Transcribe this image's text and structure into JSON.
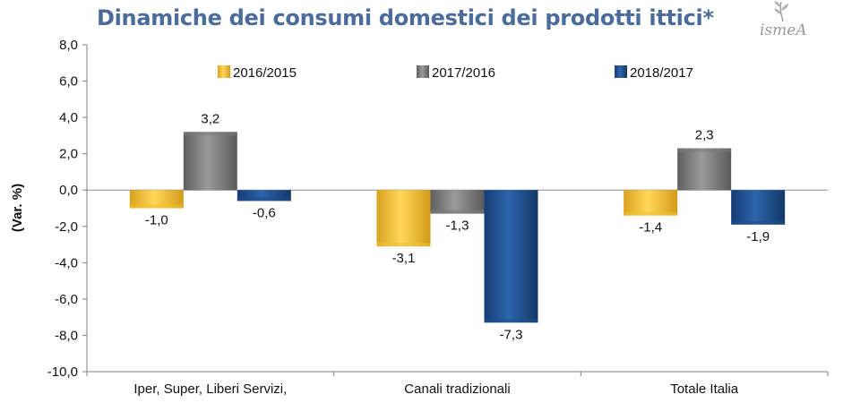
{
  "title": "Dinamiche dei consumi domestici dei prodotti ittici*",
  "logo": {
    "text": "ismeA",
    "icon": "wheat-sprig-icon"
  },
  "chart_data": {
    "type": "bar",
    "title": "Dinamiche dei consumi domestici dei prodotti ittici*",
    "ylabel": "(Var. %)",
    "xlabel": "",
    "ylim": [
      -10,
      8
    ],
    "yticks": [
      8,
      6,
      4,
      2,
      0,
      -2,
      -4,
      -6,
      -8,
      -10
    ],
    "ytick_labels": [
      "8,0",
      "6,0",
      "4,0",
      "2,0",
      "0,0",
      "-2,0",
      "-4,0",
      "-6,0",
      "-8,0",
      "-10,0"
    ],
    "categories": [
      "Iper, Super, Liberi Servizi,",
      "Canali tradizionali",
      "Totale Italia"
    ],
    "series": [
      {
        "name": "2016/2015",
        "color": "#f0c030",
        "values": [
          -1.0,
          -3.1,
          -1.4
        ],
        "labels": [
          "-1,0",
          "-3,1",
          "-1,4"
        ]
      },
      {
        "name": "2017/2016",
        "color": "#7a7a7a",
        "values": [
          3.2,
          -1.3,
          2.3
        ],
        "labels": [
          "3,2",
          "-1,3",
          "2,3"
        ]
      },
      {
        "name": "2018/2017",
        "color": "#1f4e8c",
        "values": [
          -0.6,
          -7.3,
          -1.9
        ],
        "labels": [
          "-0,6",
          "-7,3",
          "-1,9"
        ]
      }
    ],
    "grid": false,
    "legend": "top"
  }
}
